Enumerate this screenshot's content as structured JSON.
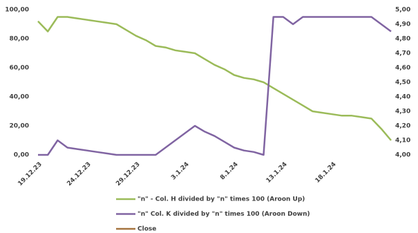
{
  "chart_data": {
    "type": "line",
    "categories": [
      "19.12.23",
      null,
      null,
      null,
      null,
      "24.12.23",
      null,
      null,
      null,
      null,
      "29.12.23",
      null,
      null,
      null,
      null,
      "3.1.24",
      null,
      null,
      null,
      null,
      "8.1.24",
      null,
      null,
      null,
      null,
      "13.1.24",
      null,
      null,
      null,
      null,
      "18.1.24",
      null,
      null,
      null,
      null,
      null,
      null
    ],
    "series": [
      {
        "name": "\"n\" - Col. H divided by \"n\" times 100 (Aroon Up)",
        "color": "#9bbb59",
        "values": [
          92,
          85,
          95,
          95,
          94,
          93,
          92,
          91,
          90,
          86,
          82,
          79,
          75,
          74,
          72,
          71,
          70,
          66,
          62,
          59,
          55,
          53,
          52,
          50,
          46,
          42,
          38,
          34,
          30,
          29,
          28,
          27,
          27,
          26,
          25,
          18,
          10
        ]
      },
      {
        "name": "\"n\" Col. K divided by \"n\" times 100 (Aroon Down)",
        "color": "#8064a2",
        "values": [
          0,
          0,
          10,
          5,
          4,
          3,
          2,
          1,
          0,
          0,
          0,
          0,
          0,
          5,
          10,
          15,
          20,
          16,
          13,
          9,
          5,
          3,
          2,
          0,
          95,
          95,
          90,
          95,
          95,
          95,
          95,
          95,
          95,
          95,
          95,
          90,
          85
        ]
      },
      {
        "name": "Close",
        "color": "#a5733f",
        "axis": "y2",
        "values": [
          null,
          null,
          null,
          null,
          null,
          null,
          null,
          null,
          null,
          null,
          null,
          null,
          null,
          null,
          null,
          null,
          null,
          null,
          null,
          null,
          null,
          null,
          null,
          null,
          null,
          null,
          null,
          null,
          null,
          null,
          null,
          null,
          null,
          null,
          null,
          null,
          null
        ]
      }
    ],
    "ylim": [
      0,
      100
    ],
    "yticks": [
      {
        "value": 0,
        "label": "0,00"
      },
      {
        "value": 20,
        "label": "20,00"
      },
      {
        "value": 40,
        "label": "40,00"
      },
      {
        "value": 60,
        "label": "60,00"
      },
      {
        "value": 80,
        "label": "80,00"
      },
      {
        "value": 100,
        "label": "100,00"
      }
    ],
    "y2lim": [
      4,
      5
    ],
    "y2ticks": [
      {
        "value": 4.0,
        "label": "4,00"
      },
      {
        "value": 4.1,
        "label": "4,10"
      },
      {
        "value": 4.2,
        "label": "4,20"
      },
      {
        "value": 4.3,
        "label": "4,30"
      },
      {
        "value": 4.4,
        "label": "4,40"
      },
      {
        "value": 4.5,
        "label": "4,50"
      },
      {
        "value": 4.6,
        "label": "4,60"
      },
      {
        "value": 4.7,
        "label": "4,70"
      },
      {
        "value": 4.8,
        "label": "4,80"
      },
      {
        "value": 4.9,
        "label": "4,90"
      },
      {
        "value": 5.0,
        "label": "5,00"
      }
    ],
    "grid": false
  }
}
